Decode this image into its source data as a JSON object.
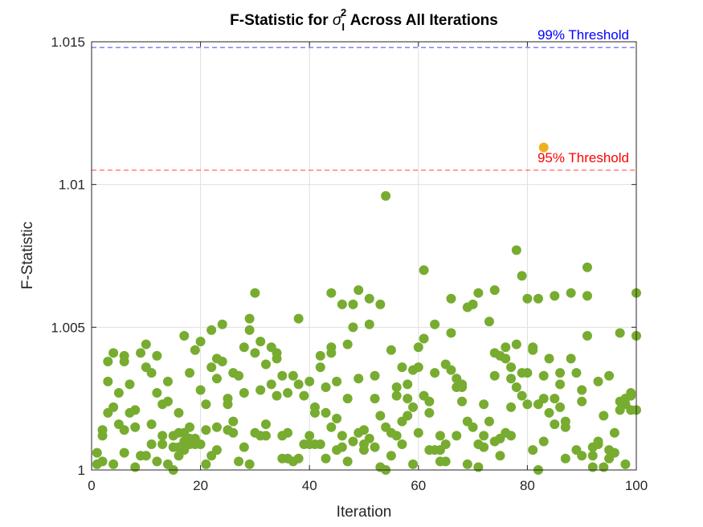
{
  "chart_data": {
    "type": "scatter",
    "title_prefix": "F-Statistic for ",
    "title_symbol": "σ",
    "title_sup": "2",
    "title_sub": "I",
    "title_suffix": " Across All Iterations",
    "xlabel": "Iteration",
    "ylabel": "F-Statistic",
    "xlim": [
      0,
      100
    ],
    "ylim": [
      1.0,
      1.015
    ],
    "xticks": [
      0,
      20,
      40,
      60,
      80,
      100
    ],
    "yticks": [
      1.0,
      1.005,
      1.01,
      1.015
    ],
    "ytick_labels": [
      "1",
      "1.005",
      "1.01",
      "1.015"
    ],
    "grid": true,
    "colors": {
      "points": "#77AC30",
      "highlight": "#EDB120",
      "threshold_95": "#FF0000",
      "threshold_99": "#0000FF"
    },
    "thresholds": [
      {
        "name": "95% Threshold",
        "value": 1.0105,
        "color": "#FF0000"
      },
      {
        "name": "99% Threshold",
        "value": 1.0148,
        "color": "#0000FF"
      }
    ],
    "series": [
      {
        "color": "#77AC30",
        "points": [
          [
            1,
            1.0006
          ],
          [
            1,
            1.0002
          ],
          [
            2,
            1.0014
          ],
          [
            2,
            1.0012
          ],
          [
            2,
            1.0003
          ],
          [
            3,
            1.0038
          ],
          [
            3,
            1.0031
          ],
          [
            3,
            1.002
          ],
          [
            4,
            1.0041
          ],
          [
            4,
            1.0022
          ],
          [
            4,
            1.0002
          ],
          [
            5,
            1.0027
          ],
          [
            5,
            1.0016
          ],
          [
            6,
            1.004
          ],
          [
            6,
            1.0038
          ],
          [
            6,
            1.0014
          ],
          [
            6,
            1.0006
          ],
          [
            7,
            1.003
          ],
          [
            7,
            1.002
          ],
          [
            8,
            1.0021
          ],
          [
            8,
            1.0015
          ],
          [
            8,
            1.0001
          ],
          [
            9,
            1.0041
          ],
          [
            9,
            1.0005
          ],
          [
            10,
            1.0044
          ],
          [
            10,
            1.0036
          ],
          [
            10,
            1.0005
          ],
          [
            11,
            1.0034
          ],
          [
            11,
            1.0016
          ],
          [
            11,
            1.0009
          ],
          [
            12,
            1.004
          ],
          [
            12,
            1.0027
          ],
          [
            12,
            1.0003
          ],
          [
            13,
            1.0023
          ],
          [
            13,
            1.0012
          ],
          [
            13,
            1.0009
          ],
          [
            14,
            1.0031
          ],
          [
            14,
            1.0024
          ],
          [
            14,
            1.0002
          ],
          [
            15,
            1.0012
          ],
          [
            15,
            1.0008
          ],
          [
            15,
            1.0
          ],
          [
            16,
            1.002
          ],
          [
            16,
            1.0013
          ],
          [
            16,
            1.0008
          ],
          [
            16,
            1.0005
          ],
          [
            17,
            1.0047
          ],
          [
            17,
            1.0013
          ],
          [
            17,
            1.001
          ],
          [
            17,
            1.0007
          ],
          [
            18,
            1.0034
          ],
          [
            18,
            1.0015
          ],
          [
            18,
            1.0011
          ],
          [
            18,
            1.0009
          ],
          [
            19,
            1.0042
          ],
          [
            19,
            1.0011
          ],
          [
            19,
            1.0009
          ],
          [
            20,
            1.0045
          ],
          [
            20,
            1.0028
          ],
          [
            20,
            1.0009
          ],
          [
            21,
            1.0023
          ],
          [
            21,
            1.0014
          ],
          [
            21,
            1.0002
          ],
          [
            22,
            1.0049
          ],
          [
            22,
            1.0036
          ],
          [
            22,
            1.0005
          ],
          [
            23,
            1.0039
          ],
          [
            23,
            1.0032
          ],
          [
            23,
            1.0015
          ],
          [
            23,
            1.0007
          ],
          [
            24,
            1.0051
          ],
          [
            24,
            1.0038
          ],
          [
            25,
            1.0025
          ],
          [
            25,
            1.0023
          ],
          [
            25,
            1.0014
          ],
          [
            26,
            1.0034
          ],
          [
            26,
            1.0017
          ],
          [
            26,
            1.0013
          ],
          [
            27,
            1.0033
          ],
          [
            27,
            1.0003
          ],
          [
            28,
            1.0043
          ],
          [
            28,
            1.0027
          ],
          [
            28,
            1.0008
          ],
          [
            29,
            1.0053
          ],
          [
            29,
            1.0049
          ],
          [
            29,
            1.0002
          ],
          [
            30,
            1.0062
          ],
          [
            30,
            1.0041
          ],
          [
            30,
            1.0013
          ],
          [
            31,
            1.0045
          ],
          [
            31,
            1.0028
          ],
          [
            31,
            1.0012
          ],
          [
            32,
            1.0037
          ],
          [
            32,
            1.0016
          ],
          [
            32,
            1.0012
          ],
          [
            33,
            1.0043
          ],
          [
            33,
            1.003
          ],
          [
            34,
            1.0041
          ],
          [
            34,
            1.0039
          ],
          [
            34,
            1.0026
          ],
          [
            35,
            1.0033
          ],
          [
            35,
            1.0012
          ],
          [
            35,
            1.0004
          ],
          [
            36,
            1.0027
          ],
          [
            36,
            1.0013
          ],
          [
            36,
            1.0004
          ],
          [
            37,
            1.0033
          ],
          [
            37,
            1.0003
          ],
          [
            38,
            1.0053
          ],
          [
            38,
            1.003
          ],
          [
            38,
            1.0004
          ],
          [
            39,
            1.0026
          ],
          [
            39,
            1.0009
          ],
          [
            40,
            1.0031
          ],
          [
            40,
            1.0012
          ],
          [
            40,
            1.0009
          ],
          [
            41,
            1.0022
          ],
          [
            41,
            1.002
          ],
          [
            41,
            1.0009
          ],
          [
            42,
            1.004
          ],
          [
            42,
            1.0036
          ],
          [
            42,
            1.0009
          ],
          [
            43,
            1.0029
          ],
          [
            43,
            1.002
          ],
          [
            43,
            1.0004
          ],
          [
            44,
            1.0062
          ],
          [
            44,
            1.0043
          ],
          [
            44,
            1.0041
          ],
          [
            44,
            1.0015
          ],
          [
            45,
            1.0031
          ],
          [
            45,
            1.0018
          ],
          [
            45,
            1.0007
          ],
          [
            46,
            1.0058
          ],
          [
            46,
            1.0012
          ],
          [
            46,
            1.0008
          ],
          [
            47,
            1.0044
          ],
          [
            47,
            1.0025
          ],
          [
            47,
            1.0003
          ],
          [
            48,
            1.0058
          ],
          [
            48,
            1.005
          ],
          [
            48,
            1.001
          ],
          [
            49,
            1.0063
          ],
          [
            49,
            1.0032
          ],
          [
            49,
            1.0013
          ],
          [
            50,
            1.0014
          ],
          [
            50,
            1.0009
          ],
          [
            50,
            1.0007
          ],
          [
            51,
            1.006
          ],
          [
            51,
            1.0051
          ],
          [
            51,
            1.0011
          ],
          [
            52,
            1.0033
          ],
          [
            52,
            1.0025
          ],
          [
            52,
            1.0008
          ],
          [
            53,
            1.0058
          ],
          [
            53,
            1.0019
          ],
          [
            53,
            1.0001
          ],
          [
            54,
            1.0096
          ],
          [
            54,
            1.0015
          ],
          [
            54,
            1.0
          ],
          [
            55,
            1.0042
          ],
          [
            55,
            1.0013
          ],
          [
            55,
            1.0005
          ],
          [
            56,
            1.0029
          ],
          [
            56,
            1.0026
          ],
          [
            56,
            1.0012
          ],
          [
            57,
            1.0036
          ],
          [
            57,
            1.0017
          ],
          [
            57,
            1.0009
          ],
          [
            58,
            1.003
          ],
          [
            58,
            1.0025
          ],
          [
            58,
            1.0019
          ],
          [
            59,
            1.0035
          ],
          [
            59,
            1.0022
          ],
          [
            59,
            1.0002
          ],
          [
            60,
            1.0043
          ],
          [
            60,
            1.0036
          ],
          [
            60,
            1.0013
          ],
          [
            61,
            1.007
          ],
          [
            61,
            1.0046
          ],
          [
            61,
            1.0026
          ],
          [
            62,
            1.0024
          ],
          [
            62,
            1.002
          ],
          [
            62,
            1.0007
          ],
          [
            63,
            1.0051
          ],
          [
            63,
            1.0034
          ],
          [
            63,
            1.0007
          ],
          [
            64,
            1.0012
          ],
          [
            64,
            1.0007
          ],
          [
            64,
            1.0003
          ],
          [
            65,
            1.0037
          ],
          [
            65,
            1.0009
          ],
          [
            65,
            1.0003
          ],
          [
            66,
            1.006
          ],
          [
            66,
            1.0048
          ],
          [
            66,
            1.0035
          ],
          [
            67,
            1.0032
          ],
          [
            67,
            1.0029
          ],
          [
            67,
            1.0012
          ],
          [
            68,
            1.003
          ],
          [
            68,
            1.0029
          ],
          [
            68,
            1.0024
          ],
          [
            69,
            1.0057
          ],
          [
            69,
            1.0017
          ],
          [
            69,
            1.0002
          ],
          [
            70,
            1.0058
          ],
          [
            70,
            1.0015
          ],
          [
            71,
            1.0062
          ],
          [
            71,
            1.0009
          ],
          [
            71,
            1.0001
          ],
          [
            72,
            1.0023
          ],
          [
            72,
            1.0012
          ],
          [
            72,
            1.0008
          ],
          [
            73,
            1.0052
          ],
          [
            73,
            1.0017
          ],
          [
            74,
            1.0063
          ],
          [
            74,
            1.0041
          ],
          [
            74,
            1.0033
          ],
          [
            74,
            1.001
          ],
          [
            75,
            1.004
          ],
          [
            75,
            1.0011
          ],
          [
            75,
            1.0005
          ],
          [
            76,
            1.0043
          ],
          [
            76,
            1.0039
          ],
          [
            76,
            1.0013
          ],
          [
            77,
            1.0036
          ],
          [
            77,
            1.0032
          ],
          [
            77,
            1.0022
          ],
          [
            77,
            1.0012
          ],
          [
            78,
            1.0077
          ],
          [
            78,
            1.0044
          ],
          [
            78,
            1.0029
          ],
          [
            79,
            1.0068
          ],
          [
            79,
            1.0034
          ],
          [
            79,
            1.0026
          ],
          [
            80,
            1.006
          ],
          [
            80,
            1.0034
          ],
          [
            80,
            1.0023
          ],
          [
            81,
            1.0043
          ],
          [
            81,
            1.0042
          ],
          [
            81,
            1.0007
          ],
          [
            82,
            1.006
          ],
          [
            82,
            1.0023
          ],
          [
            82,
            1.0
          ],
          [
            83,
            1.0033
          ],
          [
            83,
            1.0025
          ],
          [
            83,
            1.001
          ],
          [
            84,
            1.0039
          ],
          [
            84,
            1.002
          ],
          [
            85,
            1.0061
          ],
          [
            85,
            1.0025
          ],
          [
            85,
            1.0016
          ],
          [
            86,
            1.0034
          ],
          [
            86,
            1.003
          ],
          [
            86,
            1.0022
          ],
          [
            87,
            1.0017
          ],
          [
            87,
            1.0015
          ],
          [
            87,
            1.0004
          ],
          [
            88,
            1.0062
          ],
          [
            88,
            1.0039
          ],
          [
            89,
            1.0034
          ],
          [
            89,
            1.0007
          ],
          [
            90,
            1.0028
          ],
          [
            90,
            1.0024
          ],
          [
            90,
            1.0005
          ],
          [
            91,
            1.0071
          ],
          [
            91,
            1.0061
          ],
          [
            91,
            1.0047
          ],
          [
            92,
            1.0008
          ],
          [
            92,
            1.0005
          ],
          [
            92,
            1.0001
          ],
          [
            93,
            1.0031
          ],
          [
            93,
            1.001
          ],
          [
            93,
            1.0009
          ],
          [
            94,
            1.0019
          ],
          [
            94,
            1.0001
          ],
          [
            95,
            1.0033
          ],
          [
            95,
            1.0007
          ],
          [
            95,
            1.0004
          ],
          [
            96,
            1.0013
          ],
          [
            96,
            1.0006
          ],
          [
            97,
            1.0048
          ],
          [
            97,
            1.0024
          ],
          [
            97,
            1.0021
          ],
          [
            98,
            1.0025
          ],
          [
            98,
            1.0023
          ],
          [
            98,
            1.0002
          ],
          [
            99,
            1.0027
          ],
          [
            99,
            1.0026
          ],
          [
            99,
            1.0021
          ],
          [
            100,
            1.0062
          ],
          [
            100,
            1.0047
          ],
          [
            100,
            1.0021
          ]
        ]
      },
      {
        "color": "#EDB120",
        "points": [
          [
            83,
            1.0113
          ]
        ]
      }
    ]
  }
}
